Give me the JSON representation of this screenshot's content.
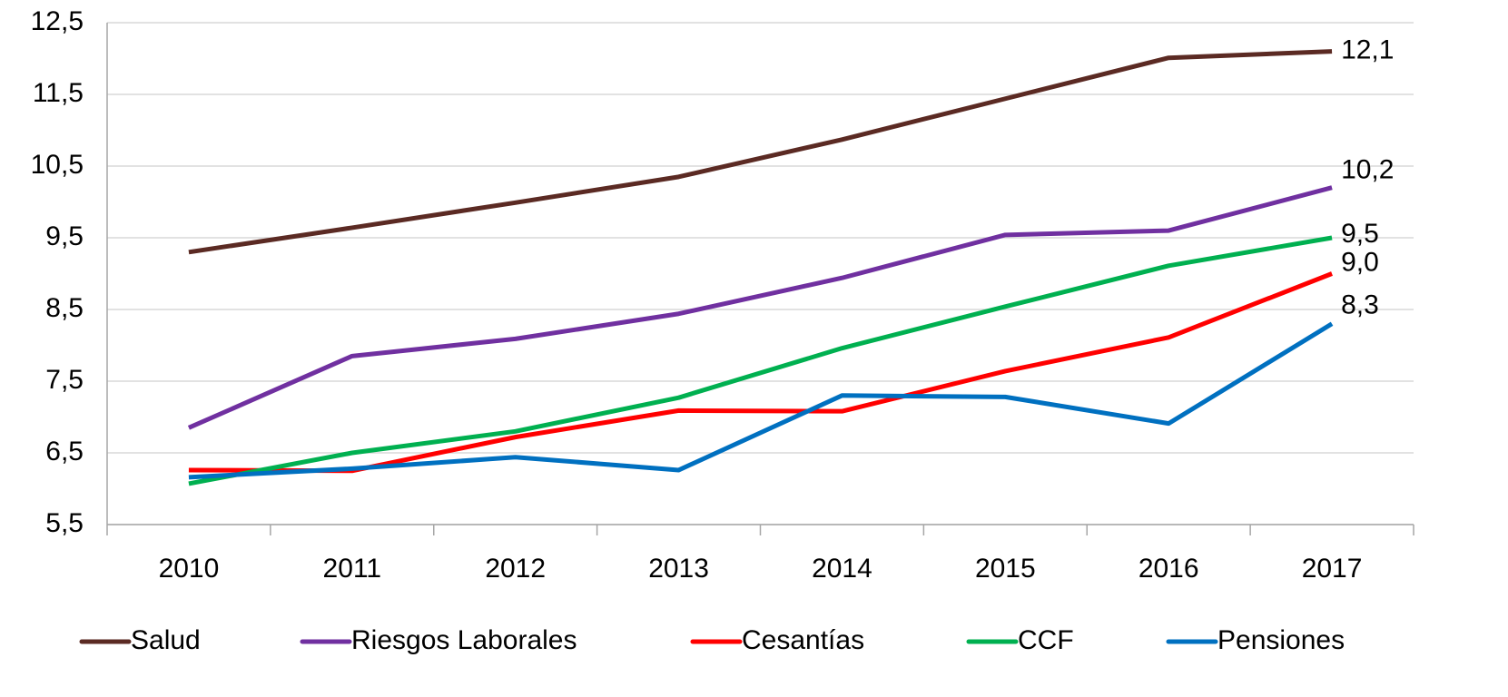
{
  "chart_data": {
    "type": "line",
    "categories": [
      "2010",
      "2011",
      "2012",
      "2013",
      "2014",
      "2015",
      "2016",
      "2017"
    ],
    "series": [
      {
        "name": "Salud",
        "color": "#5b2a23",
        "values": [
          9.3,
          9.64,
          9.99,
          10.35,
          10.87,
          11.44,
          12.01,
          12.1
        ],
        "value_labels": [
          null,
          null,
          null,
          null,
          null,
          null,
          null,
          "12,1"
        ]
      },
      {
        "name": "Riesgos Laborales",
        "color": "#7030a0",
        "values": [
          6.85,
          7.85,
          8.09,
          8.44,
          8.94,
          9.54,
          9.6,
          10.2
        ],
        "value_labels": [
          null,
          null,
          null,
          null,
          null,
          null,
          null,
          "10,2"
        ]
      },
      {
        "name": "Cesantías",
        "color": "#ff0000",
        "values": [
          6.26,
          6.25,
          6.72,
          7.09,
          7.08,
          7.64,
          8.11,
          9.0
        ],
        "value_labels": [
          null,
          null,
          null,
          null,
          null,
          null,
          null,
          "9,0"
        ]
      },
      {
        "name": "CCF",
        "color": "#00b050",
        "values": [
          6.07,
          6.5,
          6.8,
          7.27,
          7.96,
          8.54,
          9.11,
          9.5
        ],
        "value_labels": [
          null,
          null,
          null,
          null,
          null,
          null,
          null,
          "9,5"
        ]
      },
      {
        "name": "Pensiones",
        "color": "#0070c0",
        "values": [
          6.16,
          6.28,
          6.44,
          6.26,
          7.3,
          7.28,
          6.91,
          8.3
        ],
        "value_labels": [
          null,
          null,
          null,
          null,
          null,
          null,
          null,
          "8,3"
        ]
      }
    ],
    "ylim": [
      5.5,
      12.5
    ],
    "yticks": [
      {
        "value": 5.5,
        "label": "5,5"
      },
      {
        "value": 6.5,
        "label": "6,5"
      },
      {
        "value": 7.5,
        "label": "7,5"
      },
      {
        "value": 8.5,
        "label": "8,5"
      },
      {
        "value": 9.5,
        "label": "9,5"
      },
      {
        "value": 10.5,
        "label": "10,5"
      },
      {
        "value": 11.5,
        "label": "11,5"
      },
      {
        "value": 12.5,
        "label": "12,5"
      }
    ],
    "grid": true,
    "legend": "bottom"
  }
}
